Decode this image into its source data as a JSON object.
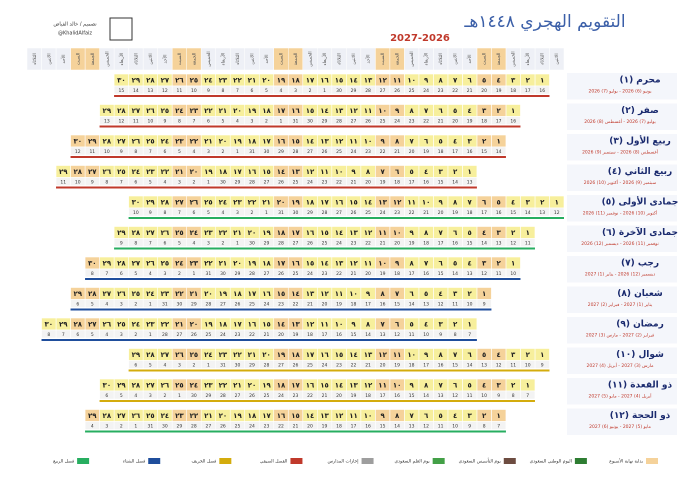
{
  "header": {
    "title": "التقويم الهجري ١٤٤٨هـ",
    "years": "2027-2026",
    "credit": "تصميم / خالد الفياض",
    "handle": "@KhalidAlfaiz"
  },
  "weekdays": [
    "الاثنين",
    "الثلاثاء",
    "الأربعاء",
    "الخميس",
    "الجمعة",
    "السبت",
    "الأحد"
  ],
  "day_labels": [
    "١",
    "٢",
    "٣",
    "٤",
    "٥",
    "٦",
    "٧",
    "٨",
    "٩",
    "١٠",
    "١١",
    "١٢",
    "١٣",
    "١٤",
    "١٥",
    "١٦",
    "١٧",
    "١٨",
    "١٩",
    "٢٠",
    "٢١",
    "٢٢",
    "٢٣",
    "٢٤",
    "٢٥",
    "٢٦",
    "٢٧",
    "٢٨",
    "٢٩",
    "٣٠"
  ],
  "months": [
    {
      "name": "محرم (١)",
      "span": "يونيو (6) 2026 - يوليو (7) 2026",
      "days": 30,
      "bar_color": "#c0392b",
      "gregorian": [
        16,
        17,
        18,
        19,
        20,
        21,
        22,
        23,
        24,
        25,
        26,
        27,
        28,
        29,
        30,
        1,
        2,
        3,
        4,
        5,
        6,
        7,
        8,
        9,
        10,
        11,
        12,
        13,
        14,
        15
      ]
    },
    {
      "name": "صفر (٢)",
      "span": "يوليو (7) 2026 - أغسطس (8) 2026",
      "days": 29,
      "bar_color": "#c0392b",
      "gregorian": [
        16,
        17,
        18,
        19,
        20,
        21,
        22,
        23,
        24,
        25,
        26,
        27,
        28,
        29,
        30,
        31,
        1,
        2,
        3,
        4,
        5,
        6,
        7,
        8,
        9,
        10,
        11,
        12,
        13
      ]
    },
    {
      "name": "ربيع الأول (٣)",
      "span": "أغسطس (8) 2026 - سبتمبر (9) 2026",
      "days": 30,
      "bar_color": "#c0392b",
      "gregorian": [
        14,
        15,
        16,
        17,
        18,
        19,
        20,
        21,
        22,
        23,
        24,
        25,
        26,
        27,
        28,
        29,
        30,
        31,
        1,
        2,
        3,
        4,
        5,
        6,
        7,
        8,
        9,
        10,
        11,
        12
      ]
    },
    {
      "name": "ربيع الثاني (٤)",
      "span": "سبتمبر (9) 2026 - أكتوبر (10) 2026",
      "days": 29,
      "bar_color": "#c0392b",
      "gregorian": [
        13,
        14,
        15,
        16,
        17,
        18,
        19,
        20,
        21,
        22,
        23,
        24,
        25,
        26,
        27,
        28,
        29,
        30,
        1,
        2,
        3,
        4,
        5,
        6,
        7,
        8,
        9,
        10,
        11
      ]
    },
    {
      "name": "جمادى الأولى (٥)",
      "span": "أكتوبر (10) 2026 - نوفمبر (11) 2026",
      "days": 30,
      "bar_color": "#27ae60",
      "gregorian": [
        12,
        13,
        14,
        15,
        16,
        17,
        18,
        19,
        20,
        21,
        22,
        23,
        24,
        25,
        26,
        27,
        28,
        29,
        30,
        31,
        1,
        2,
        3,
        4,
        5,
        6,
        7,
        8,
        9,
        10
      ]
    },
    {
      "name": "جمادى الآخرة (٦)",
      "span": "نوفمبر (11) 2026 - ديسمبر (12) 2026",
      "days": 29,
      "bar_color": "#27ae60",
      "gregorian": [
        11,
        12,
        13,
        14,
        15,
        16,
        17,
        18,
        19,
        20,
        21,
        22,
        23,
        24,
        25,
        26,
        27,
        28,
        29,
        30,
        1,
        2,
        3,
        4,
        5,
        6,
        7,
        8,
        9
      ]
    },
    {
      "name": "رجب (٧)",
      "span": "ديسمبر (12) 2026 - يناير (1) 2027",
      "days": 30,
      "bar_color": "#1f4e9c",
      "gregorian": [
        10,
        11,
        12,
        13,
        14,
        15,
        16,
        17,
        18,
        19,
        20,
        21,
        22,
        23,
        24,
        25,
        26,
        27,
        28,
        29,
        30,
        31,
        1,
        2,
        3,
        4,
        5,
        6,
        7,
        8
      ]
    },
    {
      "name": "شعبان (٨)",
      "span": "يناير (1) 2027 - فبراير (2) 2027",
      "days": 29,
      "bar_color": "#1f4e9c",
      "gregorian": [
        9,
        10,
        11,
        12,
        13,
        14,
        15,
        16,
        17,
        18,
        19,
        20,
        21,
        22,
        23,
        24,
        25,
        26,
        27,
        28,
        29,
        30,
        31,
        1,
        2,
        3,
        4,
        5,
        6
      ]
    },
    {
      "name": "رمضان (٩)",
      "span": "فبراير (2) 2027 - مارس (3) 2027",
      "days": 30,
      "bar_color": "#1f4e9c",
      "gregorian": [
        7,
        8,
        9,
        10,
        11,
        12,
        13,
        14,
        15,
        16,
        17,
        18,
        19,
        20,
        21,
        22,
        23,
        24,
        25,
        26,
        27,
        28,
        1,
        2,
        3,
        4,
        5,
        6,
        7,
        8
      ]
    },
    {
      "name": "شوال (١٠)",
      "span": "مارس (3) 2027 - أبريل (4) 2027",
      "days": 29,
      "bar_color": "#d4ac0d",
      "gregorian": [
        9,
        10,
        11,
        12,
        13,
        14,
        15,
        16,
        17,
        18,
        19,
        20,
        21,
        22,
        23,
        24,
        25,
        26,
        27,
        28,
        29,
        30,
        31,
        1,
        2,
        3,
        4,
        5,
        6
      ]
    },
    {
      "name": "ذو القعدة (١١)",
      "span": "أبريل (4) 2027 - مايو (5) 2027",
      "days": 30,
      "bar_color": "#d4ac0d",
      "gregorian": [
        7,
        8,
        9,
        10,
        11,
        12,
        13,
        14,
        15,
        16,
        17,
        18,
        19,
        20,
        21,
        22,
        23,
        24,
        25,
        26,
        27,
        28,
        29,
        30,
        1,
        2,
        3,
        4,
        5,
        6
      ]
    },
    {
      "name": "ذو الحجة (١٢)",
      "span": "مايو (5) 2027 - يونيو (6) 2027",
      "days": 29,
      "bar_color": "#27ae60",
      "gregorian": [
        7,
        8,
        9,
        10,
        11,
        12,
        13,
        14,
        15,
        16,
        17,
        18,
        19,
        20,
        21,
        22,
        23,
        24,
        25,
        26,
        27,
        28,
        29,
        30,
        31,
        1,
        2,
        3,
        4
      ]
    }
  ],
  "legend": [
    {
      "label": "بداية نهاية الأسبوع",
      "color": "#f5d29a"
    },
    {
      "label": "اليوم الوطني السعودي",
      "color": "#2e7d32"
    },
    {
      "label": "يوم التأسيس السعودي",
      "color": "#6d4c41"
    },
    {
      "label": "يوم العلم السعودي",
      "color": "#43a047"
    },
    {
      "label": "إجازات المدارس",
      "color": "#9e9e9e"
    },
    {
      "label": "الفصل الصيفي",
      "color": "#c0392b"
    },
    {
      "label": "فصل الخريف",
      "color": "#d4ac0d"
    },
    {
      "label": "فصل الشتاء",
      "color": "#1f4e9c"
    },
    {
      "label": "فصل الربيع",
      "color": "#27ae60"
    }
  ]
}
